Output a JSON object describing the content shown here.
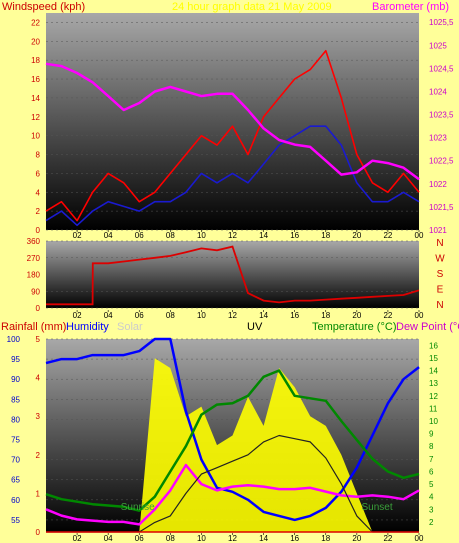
{
  "colors": {
    "background": "#ffff99",
    "wind_gust": "#ff0000",
    "wind_avg": "#1a1ad0",
    "barometer": "#ff00ff",
    "direction": "#dd0000",
    "rain": "#dd0000",
    "humidity": "#0000ff",
    "solar": "#ffff00",
    "uv": "#222222",
    "temperature": "#008800",
    "dew_point": "#ff00ff",
    "panel_top": "#9a9a9a",
    "panel_bottom": "#000000"
  },
  "header": {
    "title": "24 hour graph data  21 May 2009"
  },
  "chart_data": [
    {
      "type": "line",
      "title": "",
      "ylabel_left": "Windspeed (kph)",
      "ylabel_right": "Barometer (mb)",
      "x_ticks": [
        "02",
        "04",
        "06",
        "08",
        "10",
        "12",
        "14",
        "16",
        "18",
        "20",
        "22",
        "00"
      ],
      "ylim_left": [
        0,
        23
      ],
      "ylim_right": [
        1021,
        1025.7
      ],
      "y_ticks_left": [
        "0",
        "2",
        "4",
        "6",
        "8",
        "10",
        "12",
        "14",
        "16",
        "18",
        "20",
        "22"
      ],
      "y_ticks_right": [
        "1021",
        "1021,5",
        "1022",
        "1022,5",
        "1023",
        "1023,5",
        "1024",
        "1024,5",
        "1025",
        "1025,5"
      ],
      "x": [
        0,
        1,
        2,
        3,
        4,
        5,
        6,
        7,
        8,
        9,
        10,
        11,
        12,
        13,
        14,
        15,
        16,
        17,
        18,
        19,
        20,
        21,
        22,
        23,
        24
      ],
      "series": [
        {
          "name": "Windspeed (kph)",
          "axis": "left",
          "values": [
            2,
            3,
            1,
            4,
            6,
            5,
            3,
            4,
            6,
            8,
            10,
            9,
            11,
            8,
            12,
            14,
            16,
            17,
            19,
            14,
            8,
            5,
            4,
            6,
            4
          ]
        },
        {
          "name": "Windspeed (kph)",
          "axis": "left",
          "values": [
            1,
            2,
            0.5,
            2,
            3,
            2.5,
            2,
            3,
            3,
            4,
            6,
            5,
            6,
            5,
            7,
            9,
            10,
            11,
            11,
            9,
            5,
            3,
            3,
            4,
            3
          ]
        },
        {
          "name": "Barometer (mb)",
          "axis": "right",
          "values": [
            1024.6,
            1024.55,
            1024.4,
            1024.2,
            1023.9,
            1023.6,
            1023.75,
            1024.0,
            1024.1,
            1024.0,
            1023.9,
            1023.95,
            1023.95,
            1023.6,
            1023.2,
            1022.95,
            1022.85,
            1022.8,
            1022.5,
            1022.2,
            1022.25,
            1022.5,
            1022.45,
            1022.35,
            1022.1
          ]
        }
      ]
    },
    {
      "type": "line",
      "title": "",
      "x_ticks": [
        "02",
        "04",
        "06",
        "08",
        "10",
        "12",
        "14",
        "16",
        "18",
        "20",
        "22",
        "00"
      ],
      "y_ticks_left": [
        "0",
        "90",
        "180",
        "270",
        "360"
      ],
      "compass_labels": [
        "N",
        "W",
        "S",
        "E",
        "N"
      ],
      "ylim": [
        0,
        360
      ],
      "x": [
        0,
        1,
        2,
        3,
        3.01,
        4,
        5,
        6,
        7,
        8,
        9,
        10,
        11,
        12,
        13,
        14,
        15,
        16,
        17,
        18,
        19,
        20,
        21,
        22,
        23,
        24
      ],
      "series": [
        {
          "name": "Direction",
          "values": [
            20,
            20,
            20,
            20,
            240,
            240,
            250,
            260,
            270,
            280,
            300,
            320,
            310,
            330,
            80,
            40,
            30,
            40,
            40,
            45,
            50,
            55,
            60,
            65,
            70,
            95
          ]
        }
      ]
    },
    {
      "type": "line",
      "title": "",
      "ylabel_left": [
        "Rainfall (mm)",
        "Humidity",
        "Solar",
        "UV"
      ],
      "ylabel_right": [
        "Temperature (°C)",
        "Dew Point (°C)"
      ],
      "x_ticks": [
        "02",
        "04",
        "06",
        "08",
        "10",
        "12",
        "14",
        "16",
        "18",
        "20",
        "22",
        "00"
      ],
      "rain_ticks": [
        "0",
        "1",
        "2",
        "3",
        "4",
        "5"
      ],
      "humidity_ticks": [
        "55",
        "60",
        "65",
        "70",
        "75",
        "80",
        "85",
        "90",
        "95",
        "100"
      ],
      "temp_ticks": [
        "2",
        "3",
        "4",
        "5",
        "6",
        "7",
        "8",
        "9",
        "10",
        "11",
        "12",
        "13",
        "14",
        "15",
        "16"
      ],
      "annotations": [
        "Sunrise",
        "Sunset"
      ],
      "ylim_humidity": [
        52,
        100
      ],
      "ylim_temp": [
        1.2,
        16.5
      ],
      "x": [
        0,
        1,
        2,
        3,
        4,
        5,
        6,
        7,
        8,
        9,
        10,
        11,
        12,
        13,
        14,
        15,
        16,
        17,
        18,
        19,
        20,
        21,
        22,
        23,
        24
      ],
      "series": [
        {
          "name": "Humidity",
          "values": [
            94,
            95,
            95,
            96,
            96,
            96,
            97,
            100,
            100,
            82,
            70,
            63,
            62,
            60,
            57,
            56,
            55,
            56,
            58,
            62,
            68,
            76,
            84,
            90,
            93
          ]
        },
        {
          "name": "Temperature (°C)",
          "values": [
            4.2,
            3.8,
            3.6,
            3.4,
            3.3,
            3.2,
            2.9,
            4.0,
            6.0,
            8.0,
            10.5,
            11.3,
            11.4,
            12.0,
            13.5,
            14.0,
            12.0,
            11.8,
            11.6,
            10.0,
            8.5,
            7.0,
            6.0,
            5.5,
            5.8
          ]
        },
        {
          "name": "Dew Point (°C)",
          "values": [
            3.0,
            2.5,
            2.2,
            2.1,
            2.0,
            2.0,
            1.8,
            3.0,
            4.5,
            6.5,
            5.0,
            4.5,
            4.8,
            4.9,
            4.8,
            4.6,
            4.6,
            4.7,
            4.4,
            4.1,
            4.0,
            4.1,
            4.0,
            3.8,
            4.5
          ]
        },
        {
          "name": "Solar",
          "values": [
            0,
            0,
            0,
            0,
            0,
            0,
            0,
            90,
            85,
            60,
            65,
            45,
            50,
            70,
            55,
            85,
            75,
            60,
            55,
            40,
            20,
            0,
            0,
            0,
            0
          ]
        },
        {
          "name": "UV",
          "values": [
            0,
            0,
            0,
            0,
            0,
            0,
            0,
            0.3,
            0.5,
            1.2,
            1.8,
            2.0,
            2.2,
            2.4,
            2.8,
            3.0,
            2.9,
            2.8,
            2.3,
            1.5,
            0.5,
            0,
            0,
            0,
            0
          ]
        },
        {
          "name": "Rainfall (mm)",
          "values": [
            0,
            0,
            0,
            0,
            0,
            0,
            0,
            0,
            0,
            0,
            0,
            0,
            0,
            0,
            0,
            0,
            0,
            0,
            0,
            0,
            0,
            0,
            0,
            0,
            0
          ]
        }
      ]
    }
  ]
}
